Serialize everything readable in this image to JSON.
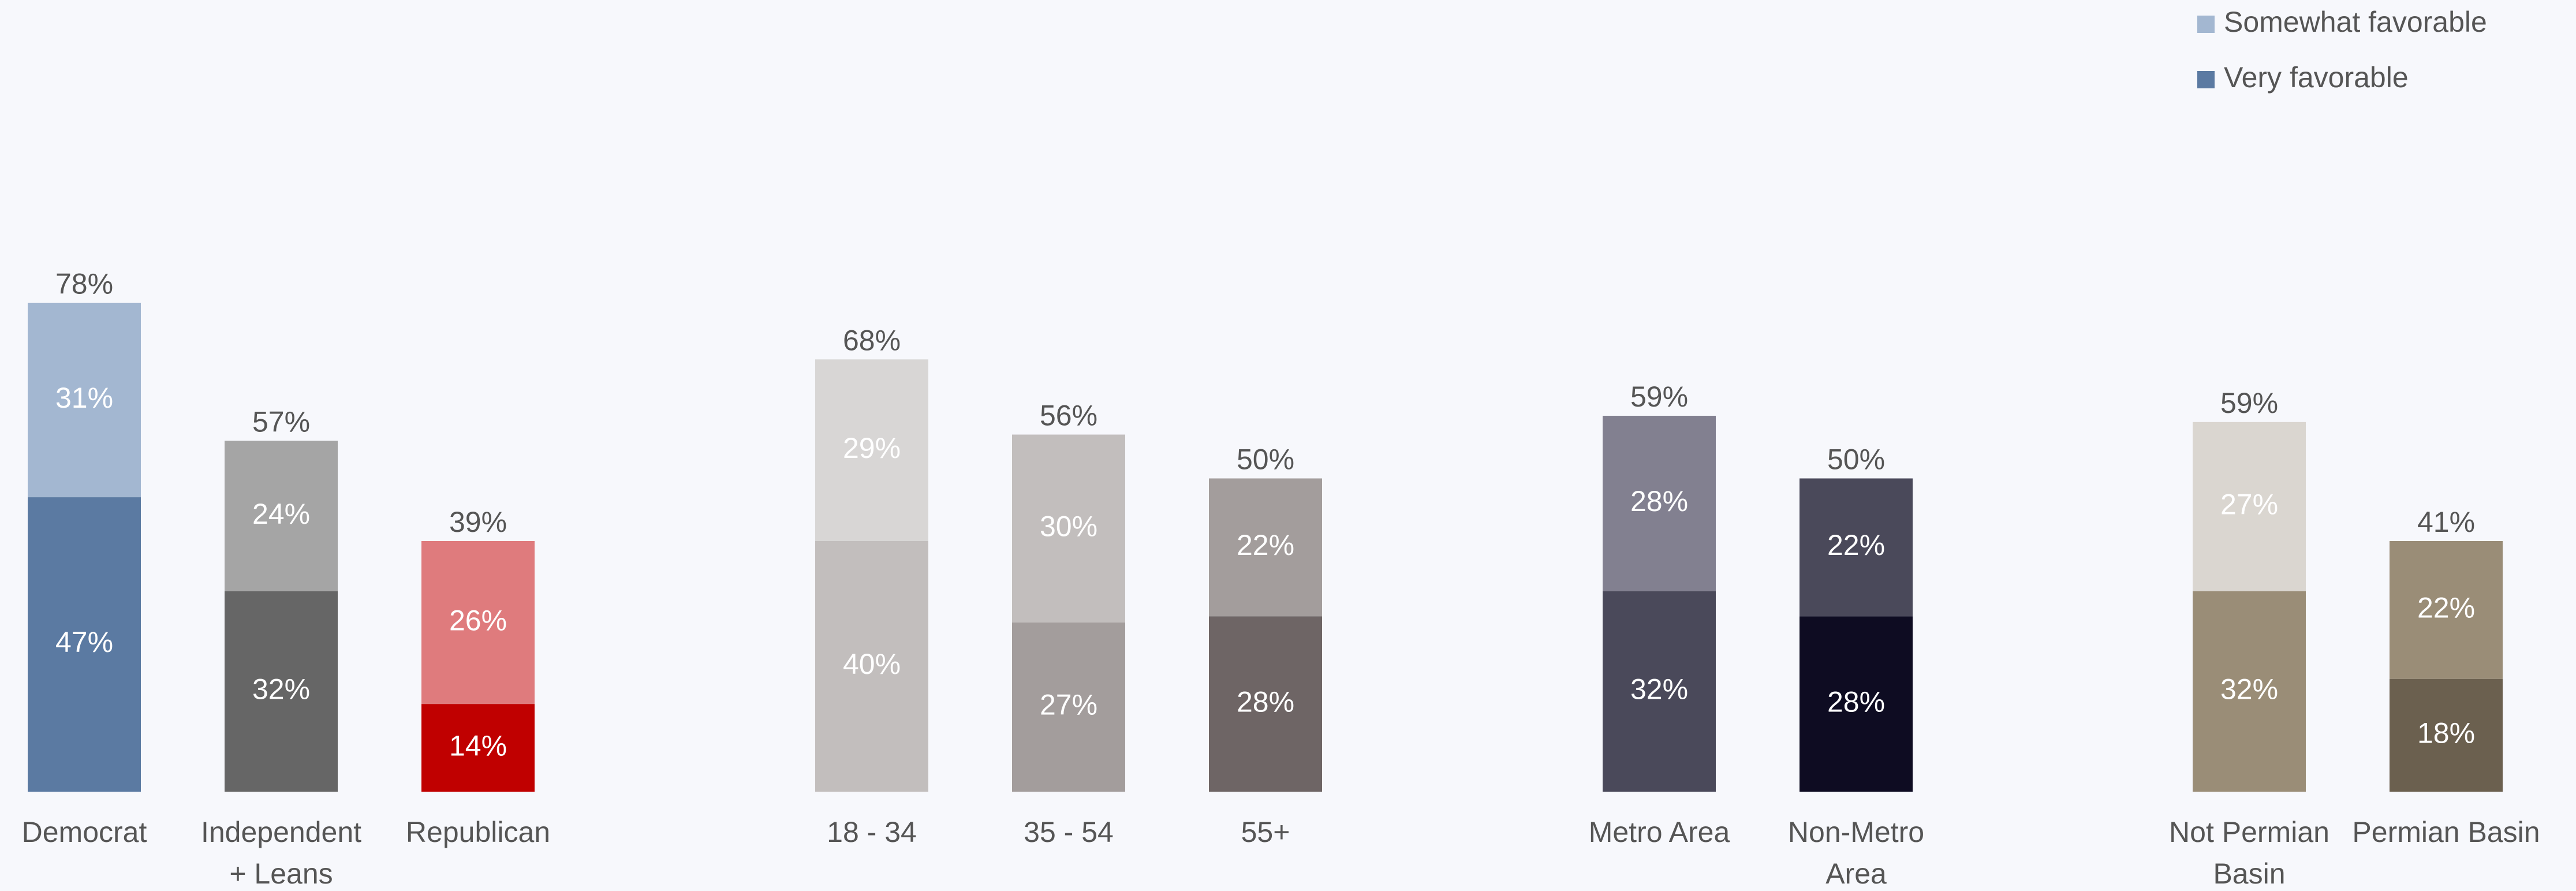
{
  "chart_data": {
    "type": "bar",
    "stacked": true,
    "grid": false,
    "legend_position": "top-right",
    "categories": [
      [
        "Democrat"
      ],
      [
        "Independent",
        "+ Leans"
      ],
      [
        "Republican"
      ],
      [
        "18 - 34"
      ],
      [
        "35 - 54"
      ],
      [
        "55+"
      ],
      [
        "Metro Area"
      ],
      [
        "Non-Metro",
        "Area"
      ],
      [
        "Not Permian",
        "Basin"
      ],
      [
        "Permian Basin"
      ]
    ],
    "groups": [
      {
        "members": [
          0,
          1,
          2
        ]
      },
      {
        "members": [
          3,
          4,
          5
        ]
      },
      {
        "members": [
          6,
          7
        ]
      },
      {
        "members": [
          8,
          9
        ]
      }
    ],
    "series": [
      {
        "name": "Very favorable",
        "values": [
          47,
          32,
          14,
          40,
          27,
          28,
          32,
          28,
          32,
          18
        ],
        "labels": [
          "47%",
          "32%",
          "14%",
          "40%",
          "27%",
          "28%",
          "32%",
          "28%",
          "32%",
          "18%"
        ]
      },
      {
        "name": "Somewhat favorable",
        "values": [
          31,
          24,
          26,
          29,
          30,
          22,
          28,
          22,
          27,
          22
        ],
        "labels": [
          "31%",
          "24%",
          "26%",
          "29%",
          "30%",
          "22%",
          "28%",
          "22%",
          "27%",
          "22%"
        ]
      }
    ],
    "totals": [
      78,
      57,
      39,
      68,
      56,
      50,
      59,
      50,
      59,
      41
    ],
    "total_labels": [
      "78%",
      "57%",
      "39%",
      "68%",
      "56%",
      "50%",
      "59%",
      "50%",
      "59%",
      "41%"
    ],
    "ylim": [
      0,
      80
    ],
    "colors": {
      "very": [
        "#5b7aa2",
        "#666666",
        "#c00000",
        "#c2bebd",
        "#a39d9c",
        "#6e6565",
        "#4a495a",
        "#0e0c22",
        "#9a8d77",
        "#6b604f"
      ],
      "somewhat": [
        "#a3b7d1",
        "#a5a5a5",
        "#df7b7d",
        "#d8d6d5",
        "#c2bebd",
        "#a39d9c",
        "#828090",
        "#4a495a",
        "#dad6d0",
        "#9a8d77"
      ]
    },
    "legend": [
      {
        "label": "Somewhat favorable",
        "color": "#a3b7d1"
      },
      {
        "label": "Very favorable",
        "color": "#5b7aa2"
      }
    ]
  }
}
